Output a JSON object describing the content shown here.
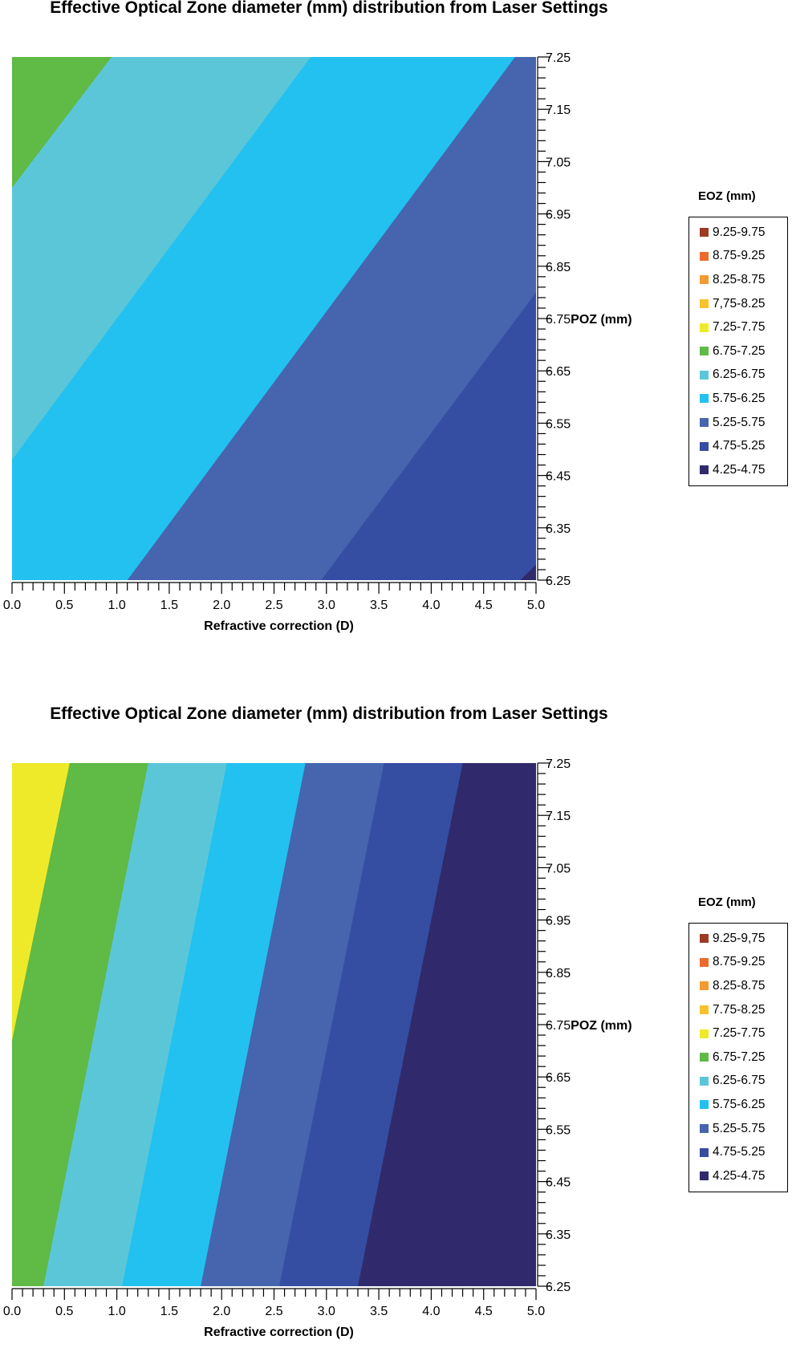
{
  "chart_data": [
    {
      "type": "heatmap",
      "title": "Effective Optical Zone diameter (mm) distribution from Laser Settings",
      "xlabel": "Refractive correction (D)",
      "ylabel": "POZ (mm)",
      "xlim": [
        0.0,
        5.0
      ],
      "ylim": [
        6.25,
        7.25
      ],
      "x_ticks": [
        "0.0",
        "0.5",
        "1.0",
        "1.5",
        "2.0",
        "2.5",
        "3.0",
        "3.5",
        "4.0",
        "4.5",
        "5.0"
      ],
      "y_ticks": [
        "6.25",
        "6.35",
        "6.45",
        "6.55",
        "6.65",
        "6.75",
        "6.85",
        "6.95",
        "7.05",
        "7.15",
        "7.25"
      ],
      "y_label_tick": "6.75",
      "legend_title": "EOZ (mm)",
      "legend_position": "right",
      "legend": [
        {
          "label": "9.25-9.75",
          "color": "#9c3a22"
        },
        {
          "label": "8.75-9.25",
          "color": "#ee6a2c"
        },
        {
          "label": "8.25-8.75",
          "color": "#f39a30"
        },
        {
          "label": "7,75-8.25",
          "color": "#f6c32c"
        },
        {
          "label": "7.25-7.75",
          "color": "#eeea2a"
        },
        {
          "label": "6.75-7.25",
          "color": "#5fba46"
        },
        {
          "label": "6.25-6.75",
          "color": "#5cc6d9"
        },
        {
          "label": "5.75-6.25",
          "color": "#22c1f0"
        },
        {
          "label": "5.25-5.75",
          "color": "#4665ae"
        },
        {
          "label": "4.75-5.25",
          "color": "#354ea2"
        },
        {
          "label": "4.25-4.75",
          "color": "#302a6c"
        }
      ],
      "contour_boundaries": [
        {
          "level": 6.75,
          "points": [
            [
              0.0,
              7.0
            ],
            [
              0.95,
              7.25
            ]
          ]
        },
        {
          "level": 6.25,
          "points": [
            [
              0.0,
              6.48
            ],
            [
              2.85,
              7.25
            ]
          ]
        },
        {
          "level": 5.75,
          "points": [
            [
              1.1,
              6.25
            ],
            [
              4.8,
              7.25
            ]
          ]
        },
        {
          "level": 5.25,
          "points": [
            [
              2.95,
              6.25
            ],
            [
              5.0,
              6.8
            ]
          ]
        },
        {
          "level": 4.75,
          "points": [
            [
              4.85,
              6.25
            ],
            [
              5.0,
              6.28
            ]
          ]
        }
      ]
    },
    {
      "type": "heatmap",
      "title": "Effective Optical Zone diameter (mm) distribution from Laser Settings",
      "xlabel": "Refractive correction (D)",
      "ylabel": "POZ (mm)",
      "xlim": [
        0.0,
        5.0
      ],
      "ylim": [
        6.25,
        7.25
      ],
      "x_ticks": [
        "0.0",
        "0.5",
        "1.0",
        "1.5",
        "2.0",
        "2.5",
        "3.0",
        "3.5",
        "4.0",
        "4.5",
        "5.0"
      ],
      "y_ticks": [
        "6.25",
        "6.35",
        "6.45",
        "6.55",
        "6.65",
        "6.75",
        "6.85",
        "6.95",
        "7.05",
        "7.15",
        "7.25"
      ],
      "y_label_tick": "6.75",
      "legend_title": "EOZ (mm)",
      "legend_position": "right",
      "legend": [
        {
          "label": "9.25-9,75",
          "color": "#9c3a22"
        },
        {
          "label": "8.75-9.25",
          "color": "#ee6a2c"
        },
        {
          "label": "8.25-8.75",
          "color": "#f39a30"
        },
        {
          "label": "7.75-8.25",
          "color": "#f6c32c"
        },
        {
          "label": "7.25-7.75",
          "color": "#eeea2a"
        },
        {
          "label": "6.75-7.25",
          "color": "#5fba46"
        },
        {
          "label": "6.25-6.75",
          "color": "#5cc6d9"
        },
        {
          "label": "5.75-6.25",
          "color": "#22c1f0"
        },
        {
          "label": "5.25-5.75",
          "color": "#4665ae"
        },
        {
          "label": "4.75-5.25",
          "color": "#354ea2"
        },
        {
          "label": "4.25-4.75",
          "color": "#302a6c"
        }
      ],
      "contour_boundaries": [
        {
          "level": 7.25,
          "points": [
            [
              0.0,
              6.72
            ],
            [
              0.55,
              7.25
            ]
          ]
        },
        {
          "level": 6.75,
          "points": [
            [
              0.3,
              6.25
            ],
            [
              1.3,
              7.25
            ]
          ]
        },
        {
          "level": 6.25,
          "points": [
            [
              1.05,
              6.25
            ],
            [
              2.05,
              7.25
            ]
          ]
        },
        {
          "level": 5.75,
          "points": [
            [
              1.8,
              6.25
            ],
            [
              2.8,
              7.25
            ]
          ]
        },
        {
          "level": 5.25,
          "points": [
            [
              2.55,
              6.25
            ],
            [
              3.55,
              7.25
            ]
          ]
        },
        {
          "level": 4.75,
          "points": [
            [
              3.3,
              6.25
            ],
            [
              4.3,
              7.25
            ]
          ]
        }
      ]
    }
  ]
}
